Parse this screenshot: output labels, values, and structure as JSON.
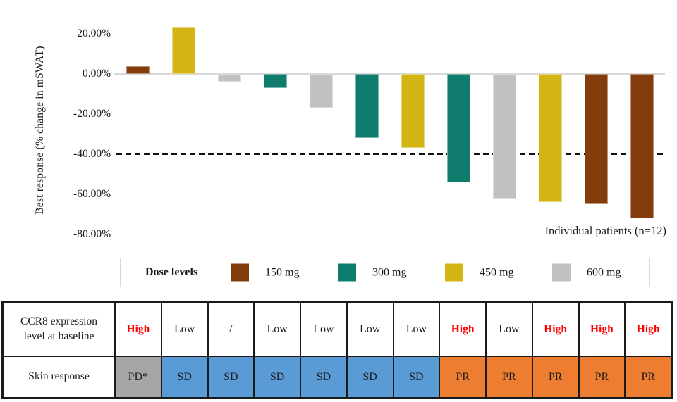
{
  "chart_data": {
    "type": "bar",
    "title": "",
    "ylabel": "Best response (% change in mSWAT)",
    "x_caption": "Individual patients (n=12)",
    "y_ticks": [
      "20.00%",
      "0.00%",
      "-20.00%",
      "-40.00%",
      "-60.00%",
      "-80.00%"
    ],
    "ylim": [
      -80,
      25
    ],
    "grid": "none",
    "reference_line_pct": -40,
    "legend_position": "bottom",
    "patients": [
      {
        "value_pct": 4,
        "dose": "150 mg"
      },
      {
        "value_pct": 23,
        "dose": "450 mg"
      },
      {
        "value_pct": -4,
        "dose": "600 mg"
      },
      {
        "value_pct": -7,
        "dose": "300 mg"
      },
      {
        "value_pct": -17,
        "dose": "600 mg"
      },
      {
        "value_pct": -32,
        "dose": "300 mg"
      },
      {
        "value_pct": -37,
        "dose": "450 mg"
      },
      {
        "value_pct": -54,
        "dose": "300 mg"
      },
      {
        "value_pct": -62,
        "dose": "600 mg"
      },
      {
        "value_pct": -64,
        "dose": "450 mg"
      },
      {
        "value_pct": -65,
        "dose": "150 mg"
      },
      {
        "value_pct": -72,
        "dose": "150 mg"
      }
    ]
  },
  "legend": {
    "title": "Dose levels",
    "items": [
      {
        "label": "150 mg",
        "color": "#843C0C"
      },
      {
        "label": "300 mg",
        "color": "#0F7C6E"
      },
      {
        "label": "450 mg",
        "color": "#D2B414"
      },
      {
        "label": "600 mg",
        "color": "#C1C1C1"
      }
    ]
  },
  "table": {
    "rows": [
      {
        "header": "CCR8 expression level at baseline",
        "cells": [
          {
            "text": "High",
            "style": "high"
          },
          {
            "text": "Low",
            "style": "low"
          },
          {
            "text": "/",
            "style": "low"
          },
          {
            "text": "Low",
            "style": "low"
          },
          {
            "text": "Low",
            "style": "low"
          },
          {
            "text": "Low",
            "style": "low"
          },
          {
            "text": "Low",
            "style": "low"
          },
          {
            "text": "High",
            "style": "high"
          },
          {
            "text": "Low",
            "style": "low"
          },
          {
            "text": "High",
            "style": "high"
          },
          {
            "text": "High",
            "style": "high"
          },
          {
            "text": "High",
            "style": "high"
          }
        ]
      },
      {
        "header": "Skin response",
        "cells": [
          {
            "text": "PD*",
            "style": "pd"
          },
          {
            "text": "SD",
            "style": "sd"
          },
          {
            "text": "SD",
            "style": "sd"
          },
          {
            "text": "SD",
            "style": "sd"
          },
          {
            "text": "SD",
            "style": "sd"
          },
          {
            "text": "SD",
            "style": "sd"
          },
          {
            "text": "SD",
            "style": "sd"
          },
          {
            "text": "PR",
            "style": "pr"
          },
          {
            "text": "PR",
            "style": "pr"
          },
          {
            "text": "PR",
            "style": "pr"
          },
          {
            "text": "PR",
            "style": "pr"
          },
          {
            "text": "PR",
            "style": "pr"
          }
        ]
      }
    ],
    "colors": {
      "pd_fill": "#A6A6A6",
      "sd_fill": "#5B9BD5",
      "pr_fill": "#ED7D31",
      "high_text": "#FF0000",
      "reference_line": "#141414",
      "baseline": "#D9D9D9"
    }
  }
}
